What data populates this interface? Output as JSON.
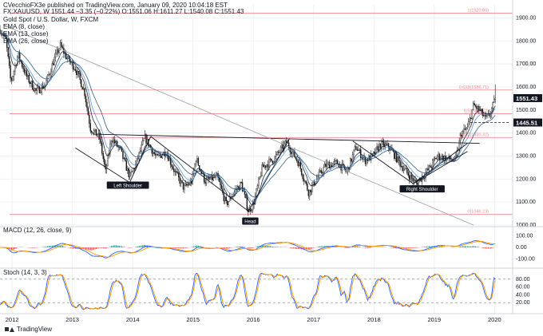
{
  "header": {
    "publisher": "CVecchioFX3e published on TradingView.com, January 09, 2020 10:04:18 EST",
    "symbol_line": "FX:XAUUSD, W  1551.44  −3.35 (−0.22%)  O:1551.06  H:1611.27  L:1540.08  C:1551.43",
    "title": "Gold Spot / U.S. Dollar, W, FXCM",
    "ema_labels": [
      "EMA (8, close)",
      "EMA (13, close)",
      "EMA (26, close)"
    ]
  },
  "footer": {
    "brand": "TradingView"
  },
  "colors": {
    "candle": "#1a1a1a",
    "ema8": "#131722",
    "ema13": "#4a90d9",
    "ema26": "#1f4e79",
    "fib": "#f28b8b",
    "macd": "#2962ff",
    "signal": "#ff9800",
    "hist_pos": "#26a69a",
    "hist_neg": "#ef5350",
    "stoch_k": "#2962ff",
    "stoch_d": "#ff9800"
  },
  "chart_data": [
    {
      "type": "candlestick",
      "title": "Gold Spot / U.S. Dollar, W, FXCM",
      "x_ticks": [
        "2012",
        "2013",
        "2014",
        "2015",
        "2016",
        "2017",
        "2018",
        "2019",
        "2020"
      ],
      "x_range": [
        2011.8,
        2020.3
      ],
      "ylim": [
        1000,
        1950
      ],
      "y_ticks": [
        1000.0,
        1100.0,
        1200.0,
        1300.0,
        1400.0,
        1500.0,
        1600.0,
        1700.0,
        1800.0,
        1900.0
      ],
      "price_path": [
        [
          2011.8,
          1850
        ],
        [
          2011.9,
          1800
        ],
        [
          2011.98,
          1620
        ],
        [
          2012.1,
          1740
        ],
        [
          2012.25,
          1640
        ],
        [
          2012.4,
          1580
        ],
        [
          2012.55,
          1610
        ],
        [
          2012.7,
          1720
        ],
        [
          2012.8,
          1780
        ],
        [
          2012.9,
          1730
        ],
        [
          2013.05,
          1680
        ],
        [
          2013.2,
          1580
        ],
        [
          2013.3,
          1420
        ],
        [
          2013.45,
          1380
        ],
        [
          2013.55,
          1230
        ],
        [
          2013.65,
          1380
        ],
        [
          2013.8,
          1320
        ],
        [
          2013.95,
          1210
        ],
        [
          2014.05,
          1260
        ],
        [
          2014.2,
          1380
        ],
        [
          2014.4,
          1290
        ],
        [
          2014.55,
          1320
        ],
        [
          2014.7,
          1230
        ],
        [
          2014.85,
          1160
        ],
        [
          2014.98,
          1190
        ],
        [
          2015.05,
          1290
        ],
        [
          2015.2,
          1190
        ],
        [
          2015.4,
          1210
        ],
        [
          2015.55,
          1090
        ],
        [
          2015.7,
          1150
        ],
        [
          2015.8,
          1180
        ],
        [
          2015.92,
          1060
        ],
        [
          2016.0,
          1090
        ],
        [
          2016.15,
          1250
        ],
        [
          2016.35,
          1290
        ],
        [
          2016.55,
          1360
        ],
        [
          2016.75,
          1270
        ],
        [
          2016.92,
          1140
        ],
        [
          2017.0,
          1180
        ],
        [
          2017.2,
          1260
        ],
        [
          2017.4,
          1270
        ],
        [
          2017.55,
          1230
        ],
        [
          2017.7,
          1340
        ],
        [
          2017.85,
          1280
        ],
        [
          2017.98,
          1300
        ],
        [
          2018.1,
          1350
        ],
        [
          2018.25,
          1340
        ],
        [
          2018.45,
          1260
        ],
        [
          2018.6,
          1210
        ],
        [
          2018.7,
          1180
        ],
        [
          2018.9,
          1240
        ],
        [
          2019.05,
          1300
        ],
        [
          2019.2,
          1290
        ],
        [
          2019.35,
          1280
        ],
        [
          2019.45,
          1400
        ],
        [
          2019.55,
          1420
        ],
        [
          2019.65,
          1520
        ],
        [
          2019.75,
          1500
        ],
        [
          2019.85,
          1460
        ],
        [
          2019.92,
          1480
        ],
        [
          2020.02,
          1551
        ]
      ],
      "emas": [
        {
          "name": "EMA (8, close)"
        },
        {
          "name": "EMA (13, close)"
        },
        {
          "name": "EMA (26, close)"
        }
      ],
      "fib_levels": [
        {
          "label": "1(1920.80)",
          "value": 1920.8
        },
        {
          "label": "0.618(1586.71)",
          "value": 1586.71
        },
        {
          "label": "0.5(1483.52)",
          "value": 1483.52
        },
        {
          "label": "0.382(1380.32)",
          "value": 1380.32
        },
        {
          "label": "0(1046.23)",
          "value": 1046.23
        }
      ],
      "price_labels": [
        {
          "text": "1551.43",
          "value": 1551.43
        },
        {
          "text": "1445.51",
          "value": 1445.51
        }
      ],
      "annotations": [
        {
          "text": "Left Shoulder",
          "x": 2013.92,
          "y": 1168
        },
        {
          "text": "Head",
          "x": 2015.95,
          "y": 1012
        },
        {
          "text": "Right Shoulder",
          "x": 2018.8,
          "y": 1152
        }
      ],
      "trendlines": [
        {
          "name": "neckline",
          "points": [
            [
              2013.35,
              1395
            ],
            [
              2019.75,
              1355
            ]
          ]
        },
        {
          "name": "long-downtrend",
          "points": [
            [
              2011.85,
              1870
            ],
            [
              2019.65,
              1000
            ]
          ]
        },
        {
          "name": "left-shoulder-v",
          "points": [
            [
              2013.05,
              1335
            ],
            [
              2013.95,
              1185
            ],
            [
              2014.3,
              1385
            ]
          ]
        },
        {
          "name": "head-v",
          "points": [
            [
              2014.3,
              1385
            ],
            [
              2015.92,
              1060
            ],
            [
              2016.6,
              1375
            ]
          ]
        },
        {
          "name": "right-shoulder-v",
          "points": [
            [
              2017.65,
              1365
            ],
            [
              2018.65,
              1180
            ],
            [
              2019.55,
              1355
            ]
          ]
        },
        {
          "name": "support-rise",
          "points": [
            [
              2018.65,
              1180
            ],
            [
              2019.55,
              1320
            ]
          ]
        },
        {
          "name": "support-flat",
          "points": [
            [
              2019.6,
              1445.51
            ],
            [
              2020.25,
              1445.51
            ]
          ]
        }
      ]
    },
    {
      "type": "line",
      "title": "MACD (12, 26, close, 9)",
      "ylim": [
        -150,
        150
      ],
      "y_ticks": [
        -100.0,
        0.0,
        100.0
      ],
      "series": [
        {
          "name": "MACD"
        },
        {
          "name": "Signal"
        },
        {
          "name": "Histogram"
        }
      ]
    },
    {
      "type": "line",
      "title": "Stoch (14, 3, 3)",
      "ylim": [
        0,
        100
      ],
      "y_ticks": [
        20.0,
        40.0,
        60.0,
        80.0
      ],
      "series": [
        {
          "name": "%K"
        },
        {
          "name": "%D"
        }
      ]
    }
  ]
}
